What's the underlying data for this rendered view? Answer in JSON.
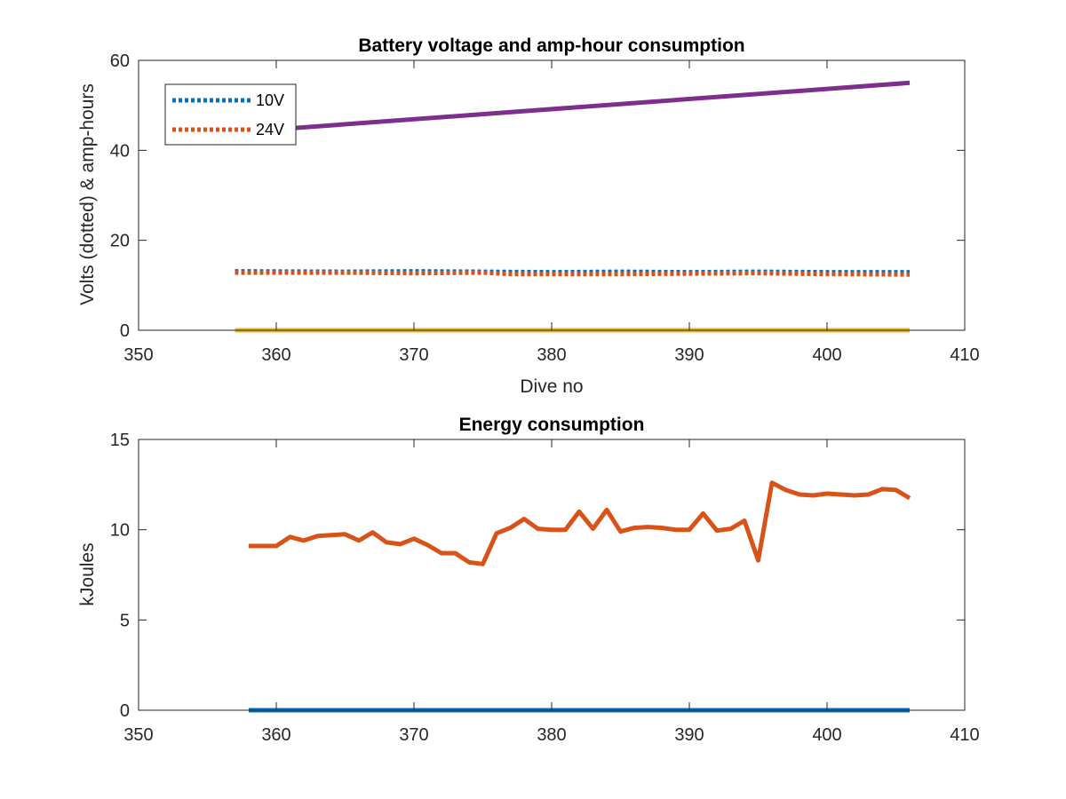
{
  "chart_data": [
    {
      "type": "line",
      "title": "Battery voltage and amp-hour consumption",
      "xlabel": "Dive no",
      "ylabel": "Volts (dotted) & amp-hours",
      "xlim": [
        350,
        410
      ],
      "ylim": [
        0,
        60
      ],
      "xticks": [
        "350",
        "360",
        "370",
        "380",
        "390",
        "400",
        "410"
      ],
      "yticks": [
        "0",
        "20",
        "40",
        "60"
      ],
      "grid": false,
      "legend_position": "top-left",
      "series": [
        {
          "name": "10V",
          "style": "dotted",
          "color": "#0072BD",
          "x": [
            357,
            365,
            370,
            375,
            380,
            385,
            390,
            395,
            400,
            406
          ],
          "y": [
            13.1,
            13.0,
            13.1,
            13.0,
            12.9,
            13.0,
            12.9,
            13.0,
            12.9,
            12.9
          ]
        },
        {
          "name": "24V",
          "style": "dotted",
          "color": "#D95319",
          "x": [
            357,
            365,
            370,
            375,
            377,
            385,
            390,
            395,
            400,
            406
          ],
          "y": [
            12.8,
            12.8,
            12.7,
            12.8,
            12.5,
            12.5,
            12.6,
            12.7,
            12.5,
            12.4
          ]
        },
        {
          "style": "solid",
          "color": "#7E2F8E",
          "x": [
            357,
            406
          ],
          "y": [
            44.0,
            55.0
          ]
        },
        {
          "style": "solid",
          "color": "#EDB120",
          "x": [
            357,
            406
          ],
          "y": [
            0,
            0
          ]
        }
      ]
    },
    {
      "type": "line",
      "title": "Energy consumption",
      "xlabel": "",
      "ylabel": "kJoules",
      "xlim": [
        350,
        410
      ],
      "ylim": [
        0,
        15
      ],
      "xticks": [
        "350",
        "360",
        "370",
        "380",
        "390",
        "400",
        "410"
      ],
      "yticks": [
        "0",
        "5",
        "10",
        "15"
      ],
      "grid": false,
      "series": [
        {
          "style": "solid",
          "color": "#D95319",
          "x": [
            358,
            359,
            360,
            361,
            362,
            363,
            364,
            365,
            366,
            367,
            368,
            369,
            370,
            371,
            372,
            373,
            374,
            375,
            376,
            377,
            378,
            379,
            380,
            381,
            382,
            383,
            384,
            385,
            386,
            387,
            388,
            389,
            390,
            391,
            392,
            393,
            394,
            395,
            396,
            397,
            398,
            399,
            400,
            401,
            402,
            403,
            404,
            405,
            406
          ],
          "y": [
            9.1,
            9.1,
            9.1,
            9.6,
            9.4,
            9.65,
            9.7,
            9.75,
            9.4,
            9.85,
            9.3,
            9.2,
            9.5,
            9.15,
            8.7,
            8.7,
            8.2,
            8.1,
            9.8,
            10.1,
            10.6,
            10.05,
            10.0,
            10.0,
            11.0,
            10.05,
            11.1,
            9.9,
            10.1,
            10.15,
            10.1,
            10.0,
            10.0,
            10.9,
            9.95,
            10.05,
            10.5,
            8.3,
            12.6,
            12.2,
            11.95,
            11.9,
            12.0,
            11.95,
            11.9,
            11.95,
            12.25,
            12.2,
            11.75
          ]
        },
        {
          "style": "solid",
          "color": "#0072BD",
          "x": [
            358,
            406
          ],
          "y": [
            0,
            0
          ]
        }
      ]
    }
  ]
}
